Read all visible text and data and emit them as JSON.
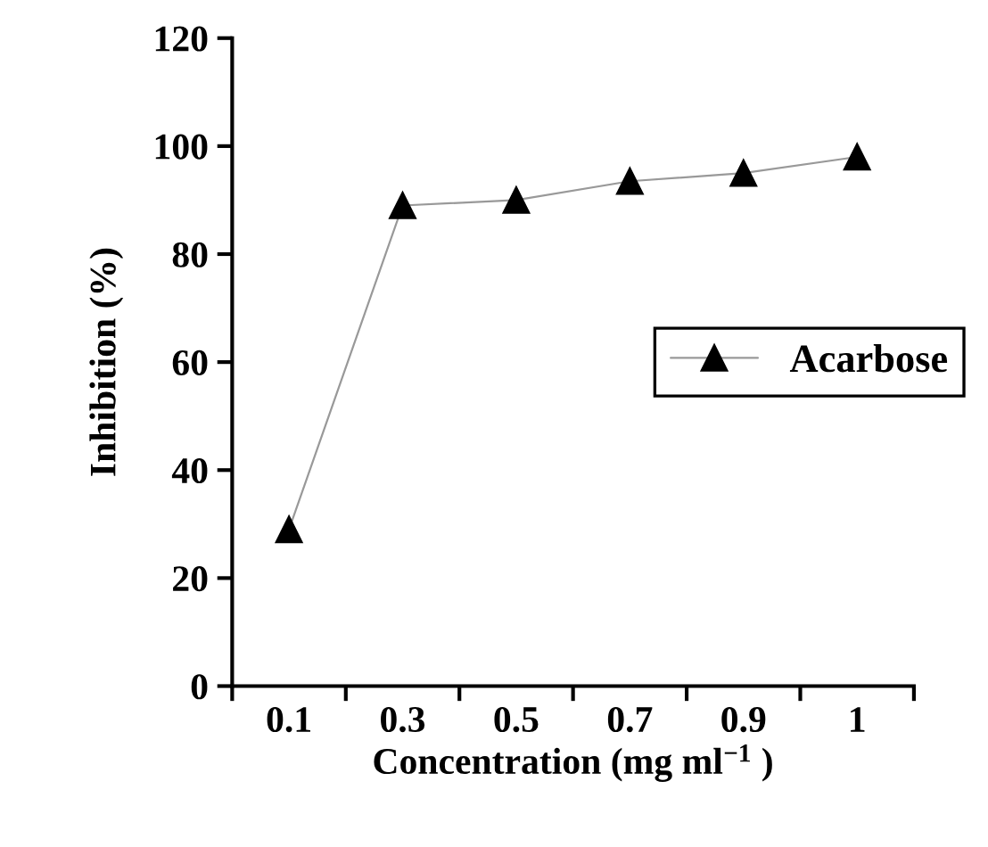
{
  "chart_data": {
    "type": "line",
    "xlabel": "Concentration (mg ml$^{−1}$ )",
    "ylabel": "Inhibition (%)",
    "categories": [
      "0.1",
      "0.3",
      "0.5",
      "0.7",
      "0.9",
      "1"
    ],
    "series": [
      {
        "name": "Acarbose",
        "color": "#000000",
        "values": [
          29,
          89,
          90,
          93.5,
          95,
          98
        ]
      }
    ],
    "ylim": [
      0,
      120
    ],
    "yticks": [
      0,
      20,
      40,
      60,
      80,
      100,
      120
    ],
    "marker": "triangle",
    "line_style": "solid",
    "legend": "right",
    "grid": false
  }
}
